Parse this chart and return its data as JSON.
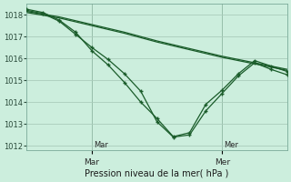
{
  "xlabel": "Pression niveau de la mer( hPa )",
  "background_color": "#cceedd",
  "grid_color": "#aaccbb",
  "line_color": "#1a5c2a",
  "xlim": [
    0,
    48
  ],
  "ylim": [
    1011.8,
    1018.5
  ],
  "yticks": [
    1012,
    1013,
    1014,
    1015,
    1016,
    1017,
    1018
  ],
  "day_lines": [
    12,
    36
  ],
  "day_labels": [
    [
      "Mar",
      12
    ],
    [
      "Mer",
      36
    ]
  ],
  "series_steep1_x": [
    0,
    3,
    6,
    9,
    12,
    15,
    18,
    21,
    24,
    27,
    30,
    33,
    36,
    39,
    42,
    45,
    48
  ],
  "series_steep1_y": [
    1018.2,
    1018.05,
    1017.7,
    1017.1,
    1016.5,
    1015.95,
    1015.3,
    1014.5,
    1013.1,
    1012.4,
    1012.5,
    1013.6,
    1014.4,
    1015.2,
    1015.8,
    1015.5,
    1015.25
  ],
  "series_steep2_x": [
    0,
    3,
    6,
    9,
    12,
    15,
    18,
    21,
    24,
    27,
    30,
    33,
    36,
    39,
    42,
    45,
    48
  ],
  "series_steep2_y": [
    1018.25,
    1018.1,
    1017.75,
    1017.2,
    1016.35,
    1015.7,
    1014.9,
    1014.0,
    1013.25,
    1012.42,
    1012.6,
    1013.9,
    1014.55,
    1015.3,
    1015.9,
    1015.65,
    1015.4
  ],
  "series_flat1_x": [
    0,
    6,
    12,
    18,
    24,
    30,
    36,
    42,
    48
  ],
  "series_flat1_y": [
    1018.1,
    1017.85,
    1017.5,
    1017.15,
    1016.75,
    1016.4,
    1016.05,
    1015.75,
    1015.45
  ],
  "series_flat2_x": [
    0,
    6,
    12,
    18,
    24,
    30,
    36,
    42,
    48
  ],
  "series_flat2_y": [
    1018.15,
    1017.9,
    1017.55,
    1017.2,
    1016.8,
    1016.45,
    1016.1,
    1015.8,
    1015.5
  ]
}
